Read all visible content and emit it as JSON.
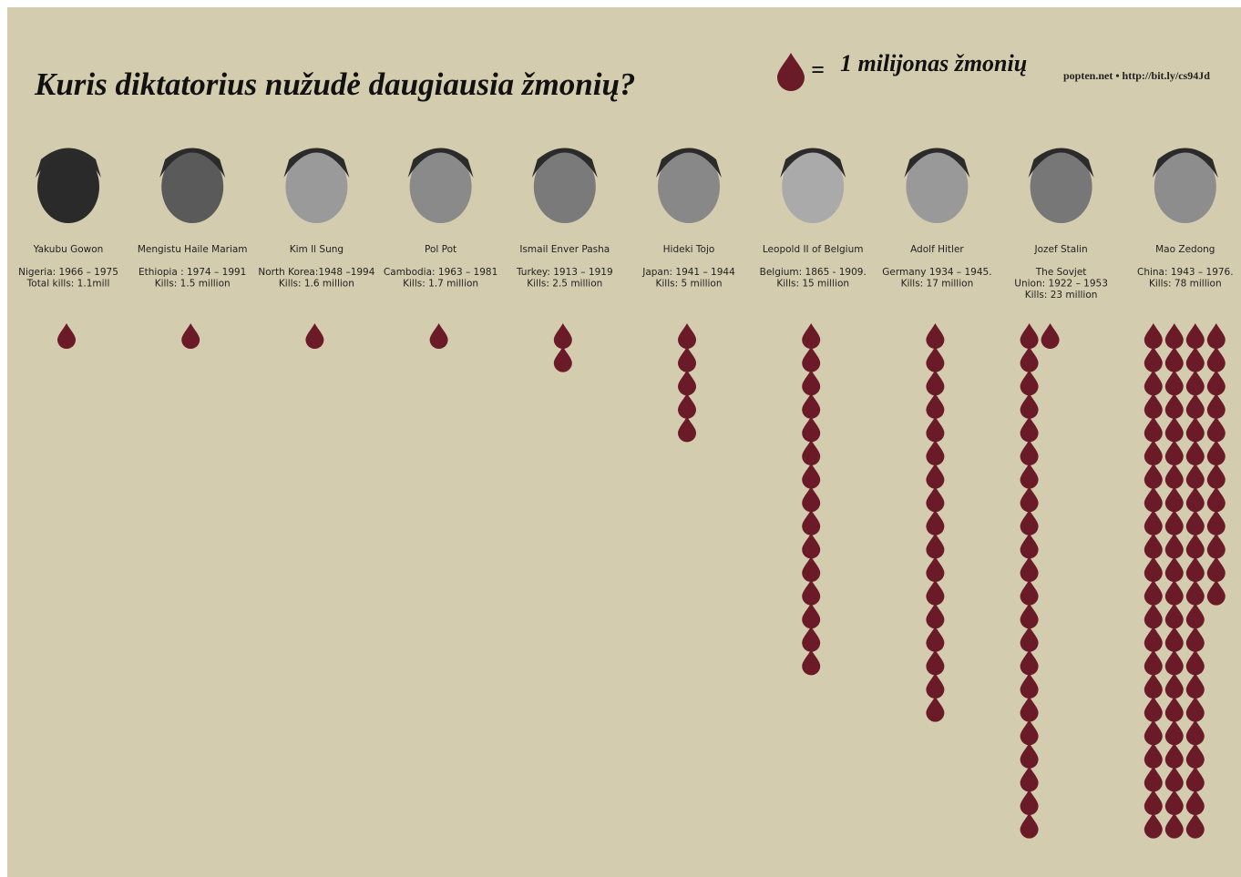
{
  "chart_data": {
    "type": "pictograph",
    "title": "Kuris diktatorius nužudė daugiausia žmonių?",
    "legend_equals": "=",
    "legend_label": "1 milijonas žmonių",
    "credit": "popten.net • http://bit.ly/cs94Jd",
    "color": "#6b1a28",
    "categories": [
      "Yakubu Gowon",
      "Mengistu Haile Mariam",
      "Kim Il Sung",
      "Pol Pot",
      "Ismail Enver Pasha",
      "Hideki Tojo",
      "Leopold II of Belgium",
      "Adolf Hitler",
      "Jozef Stalin",
      "Mao Zedong"
    ],
    "details": [
      [
        "Nigeria: 1966 – 1975",
        "Total kills: 1.1mill"
      ],
      [
        "Ethiopia : 1974 – 1991",
        "Kills: 1.5 million"
      ],
      [
        "North Korea:1948 –1994",
        "Kills: 1.6 million"
      ],
      [
        "Cambodia: 1963 – 1981",
        "Kills: 1.7 million"
      ],
      [
        "Turkey: 1913 – 1919",
        "Kills: 2.5 million"
      ],
      [
        "Japan: 1941 – 1944",
        "Kills: 5 million"
      ],
      [
        "Belgium: 1865 - 1909.",
        "Kills: 15 million"
      ],
      [
        "Germany 1934 – 1945.",
        "Kills: 17 million"
      ],
      [
        "The Sovjet",
        "Union: 1922 – 1953",
        "Kills: 23 million"
      ],
      [
        "China: 1943 – 1976.",
        "Kills: 78 million"
      ]
    ],
    "values": [
      1.1,
      1.5,
      1.6,
      1.7,
      2.5,
      5,
      15,
      17,
      23,
      78
    ]
  }
}
